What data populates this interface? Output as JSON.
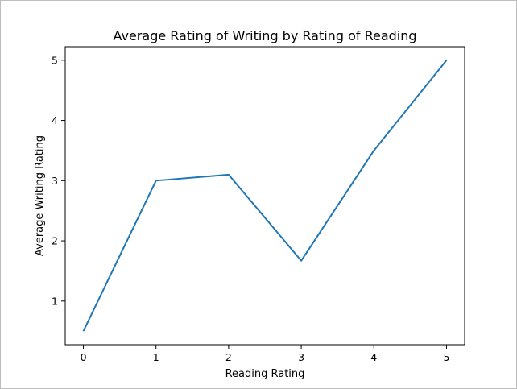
{
  "chart_data": {
    "type": "line",
    "title": "Average Rating of Writing by Rating of Reading",
    "xlabel": "Reading Rating",
    "ylabel": "Average Writing Rating",
    "x": [
      0,
      1,
      2,
      3,
      4,
      5
    ],
    "series": [
      {
        "values": [
          0.5,
          3.0,
          3.1,
          1.67,
          3.5,
          5.0
        ],
        "color": "#1f77b4"
      }
    ],
    "xticks": [
      "0",
      "1",
      "2",
      "3",
      "4",
      "5"
    ],
    "yticks": [
      "1",
      "2",
      "3",
      "4",
      "5"
    ],
    "xlim": [
      -0.25,
      5.25
    ],
    "ylim": [
      0.275,
      5.225
    ],
    "grid": false
  }
}
